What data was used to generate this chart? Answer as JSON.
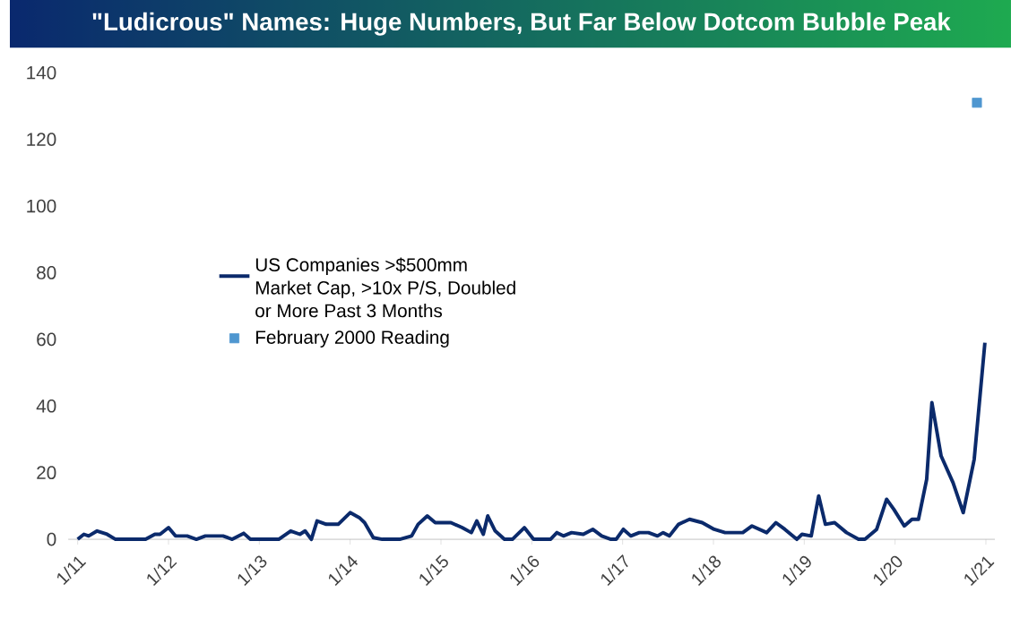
{
  "chart_data": {
    "type": "line",
    "title": "\"Ludicrous\" Names: Huge Numbers, But Far Below Dotcom Bubble Peak",
    "xlim": [
      "2010-11-24",
      "2021-02-06"
    ],
    "ylim": [
      0,
      140
    ],
    "xticks": [
      {
        "value": "2011-01",
        "label": "1/11"
      },
      {
        "value": "2012-01",
        "label": "1/12"
      },
      {
        "value": "2013-01",
        "label": "1/13"
      },
      {
        "value": "2014-01",
        "label": "1/14"
      },
      {
        "value": "2015-01",
        "label": "1/15"
      },
      {
        "value": "2016-01",
        "label": "1/16"
      },
      {
        "value": "2017-01",
        "label": "1/17"
      },
      {
        "value": "2018-01",
        "label": "1/18"
      },
      {
        "value": "2019-01",
        "label": "1/19"
      },
      {
        "value": "2020-01",
        "label": "1/20"
      },
      {
        "value": "2021-01",
        "label": "1/21"
      }
    ],
    "yticks": [
      0,
      20,
      40,
      60,
      80,
      100,
      120,
      140
    ],
    "legend": "center",
    "series": [
      {
        "name": "US Companies >$500mm Market Cap, >10x P/S, Doubled or More Past 3 Months",
        "color": "#0b2a6b",
        "x": [
          "2011-01-01",
          "2011-01-26",
          "2011-02-14",
          "2011-03-20",
          "2011-04-29",
          "2011-06-02",
          "2011-10-01",
          "2011-11-07",
          "2011-11-28",
          "2012-01-01",
          "2012-01-29",
          "2012-03-16",
          "2012-04-22",
          "2012-05-28",
          "2012-08-07",
          "2012-09-13",
          "2012-10-29",
          "2012-11-25",
          "2013-03-20",
          "2013-05-07",
          "2013-06-13",
          "2013-07-04",
          "2013-07-29",
          "2013-08-21",
          "2013-09-27",
          "2013-11-14",
          "2014-01-01",
          "2014-02-07",
          "2014-02-28",
          "2014-04-04",
          "2014-05-10",
          "2014-07-19",
          "2014-09-05",
          "2014-10-01",
          "2014-11-07",
          "2014-12-09",
          "2015-02-10",
          "2015-03-27",
          "2015-05-03",
          "2015-05-25",
          "2015-06-20",
          "2015-07-08",
          "2015-08-07",
          "2015-09-13",
          "2015-10-15",
          "2015-12-02",
          "2016-01-08",
          "2016-03-16",
          "2016-04-11",
          "2016-05-07",
          "2016-06-09",
          "2016-07-26",
          "2016-09-02",
          "2016-10-08",
          "2016-11-14",
          "2016-12-05",
          "2017-01-04",
          "2017-02-03",
          "2017-03-09",
          "2017-04-15",
          "2017-05-21",
          "2017-06-13",
          "2017-07-08",
          "2017-08-14",
          "2017-09-27",
          "2017-11-17",
          "2018-01-04",
          "2018-02-17",
          "2018-04-29",
          "2018-06-05",
          "2018-08-03",
          "2018-09-09",
          "2018-10-15",
          "2018-12-02",
          "2018-12-23",
          "2019-01-29",
          "2019-02-28",
          "2019-03-27",
          "2019-05-03",
          "2019-06-20",
          "2019-08-07",
          "2019-09-02",
          "2019-10-19",
          "2019-11-28",
          "2019-12-27",
          "2020-02-07",
          "2020-03-09",
          "2020-04-04",
          "2020-05-07",
          "2020-05-28",
          "2020-07-04",
          "2020-08-21",
          "2020-10-01",
          "2020-11-14",
          "2020-12-27"
        ],
        "values": [
          0,
          1.5,
          1,
          2.5,
          1.5,
          0,
          0,
          1.5,
          1.5,
          3.5,
          1,
          1,
          0,
          1,
          1,
          0,
          1.8,
          0,
          0,
          2.5,
          1.5,
          2.5,
          0,
          5.5,
          4.5,
          4.5,
          8,
          6.5,
          5,
          0.5,
          0,
          0,
          1,
          4.5,
          7,
          5,
          5,
          3.5,
          2,
          5.5,
          1.5,
          7,
          2.5,
          0,
          0,
          3.5,
          0,
          0,
          2,
          1,
          2,
          1.5,
          3,
          1,
          0,
          0,
          3,
          1,
          2,
          2,
          1,
          2,
          1,
          4.5,
          6,
          5,
          3,
          2,
          2,
          4,
          2,
          5,
          3,
          0,
          1.5,
          1,
          13,
          4.5,
          5,
          2,
          0,
          0,
          3,
          12,
          9,
          4,
          6,
          6,
          18,
          41,
          25,
          17,
          8,
          24,
          59
        ]
      },
      {
        "name": "February 2000 Reading",
        "type": "scatter",
        "marker": "square",
        "color": "#4f97d0",
        "x": [
          "2020-11-25"
        ],
        "values": [
          131
        ]
      }
    ]
  }
}
